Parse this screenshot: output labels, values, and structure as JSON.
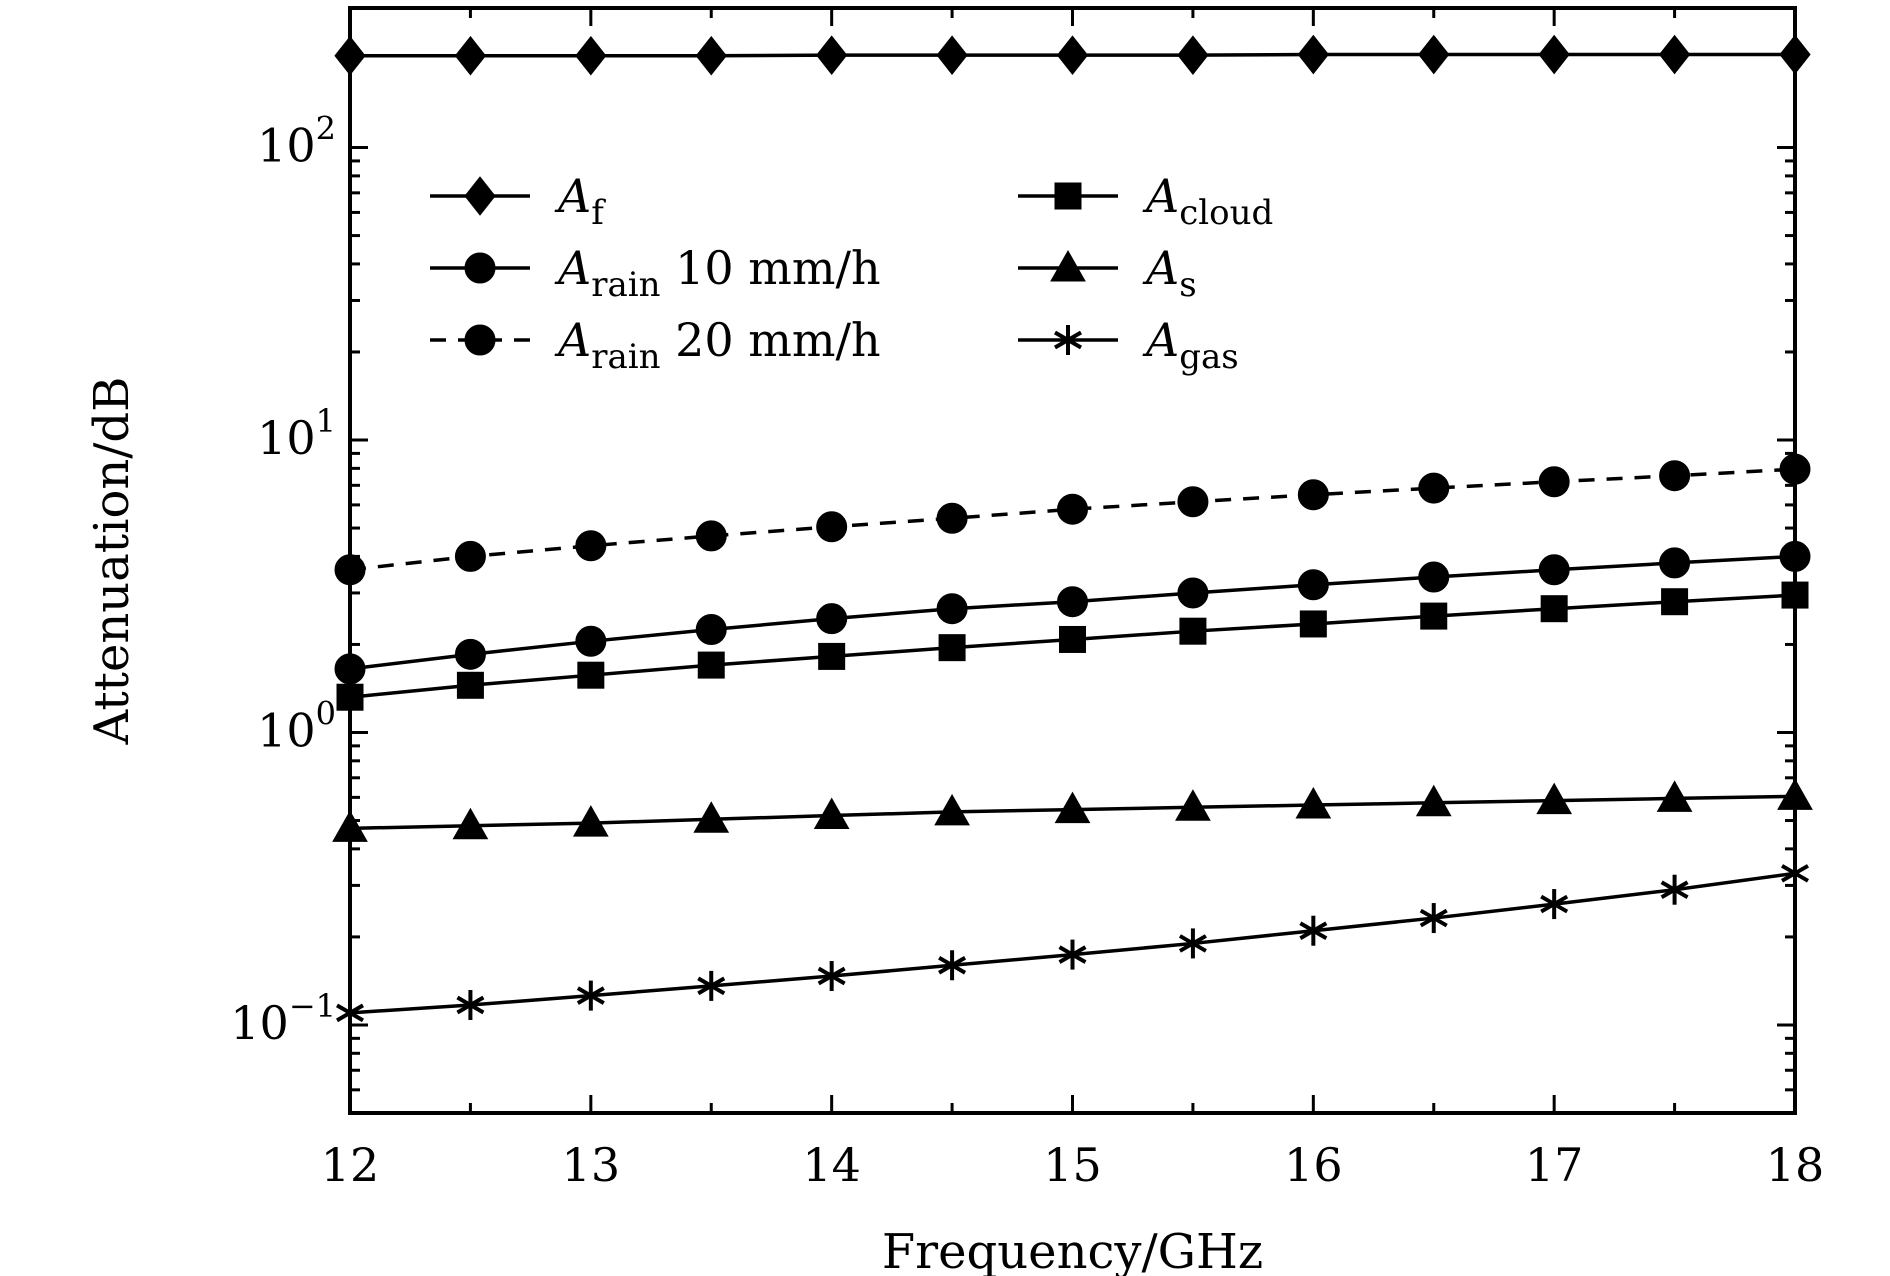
{
  "chart_data": {
    "type": "line",
    "xlabel": "Frequency/GHz",
    "ylabel": "Attenuation/dB",
    "xlim": [
      12,
      18
    ],
    "ylim": [
      0.05,
      300
    ],
    "yscale": "log",
    "grid": false,
    "legend_placement": "top-left",
    "x_ticks": [
      {
        "value": 12,
        "label": "12"
      },
      {
        "value": 13,
        "label": "13"
      },
      {
        "value": 14,
        "label": "14"
      },
      {
        "value": 15,
        "label": "15"
      },
      {
        "value": 16,
        "label": "16"
      },
      {
        "value": 17,
        "label": "17"
      },
      {
        "value": 18,
        "label": "18"
      }
    ],
    "y_ticks": [
      {
        "value": 0.1,
        "base": "10",
        "exp": "−1"
      },
      {
        "value": 1,
        "base": "10",
        "exp": "0"
      },
      {
        "value": 10,
        "base": "10",
        "exp": "1"
      },
      {
        "value": 100,
        "base": "10",
        "exp": "2"
      }
    ],
    "x": [
      12,
      12.5,
      13,
      13.5,
      14,
      14.5,
      15,
      15.5,
      16,
      16.5,
      17,
      17.5,
      18
    ],
    "series": [
      {
        "base": "A",
        "sub": "f",
        "suffix": "",
        "marker": "diamond",
        "dash": false,
        "color": "#000000",
        "values": [
          206,
          206,
          206,
          206,
          207,
          207,
          207,
          207,
          208,
          208,
          208,
          208,
          208
        ]
      },
      {
        "base": "A",
        "sub": "rain",
        "suffix": " 10 mm/h",
        "marker": "circle",
        "dash": false,
        "color": "#000000",
        "values": [
          1.65,
          1.85,
          2.05,
          2.25,
          2.45,
          2.65,
          2.8,
          3.0,
          3.2,
          3.4,
          3.6,
          3.8,
          4.0
        ]
      },
      {
        "base": "A",
        "sub": "rain",
        "suffix": " 20 mm/h",
        "marker": "circle",
        "dash": true,
        "color": "#000000",
        "values": [
          3.6,
          4.0,
          4.35,
          4.7,
          5.05,
          5.4,
          5.8,
          6.15,
          6.5,
          6.85,
          7.2,
          7.55,
          7.95
        ]
      },
      {
        "base": "A",
        "sub": "cloud",
        "suffix": "",
        "marker": "square",
        "dash": false,
        "color": "#000000",
        "values": [
          1.32,
          1.45,
          1.57,
          1.7,
          1.82,
          1.95,
          2.08,
          2.22,
          2.35,
          2.5,
          2.65,
          2.8,
          2.95
        ]
      },
      {
        "base": "A",
        "sub": "s",
        "suffix": "",
        "marker": "triangle",
        "dash": false,
        "color": "#000000",
        "values": [
          0.47,
          0.48,
          0.49,
          0.505,
          0.52,
          0.535,
          0.545,
          0.555,
          0.565,
          0.575,
          0.585,
          0.595,
          0.605
        ]
      },
      {
        "base": "A",
        "sub": "gas",
        "suffix": "",
        "marker": "asterisk",
        "dash": false,
        "color": "#000000",
        "values": [
          0.11,
          0.117,
          0.126,
          0.136,
          0.147,
          0.16,
          0.174,
          0.19,
          0.21,
          0.232,
          0.259,
          0.29,
          0.33
        ]
      }
    ]
  }
}
